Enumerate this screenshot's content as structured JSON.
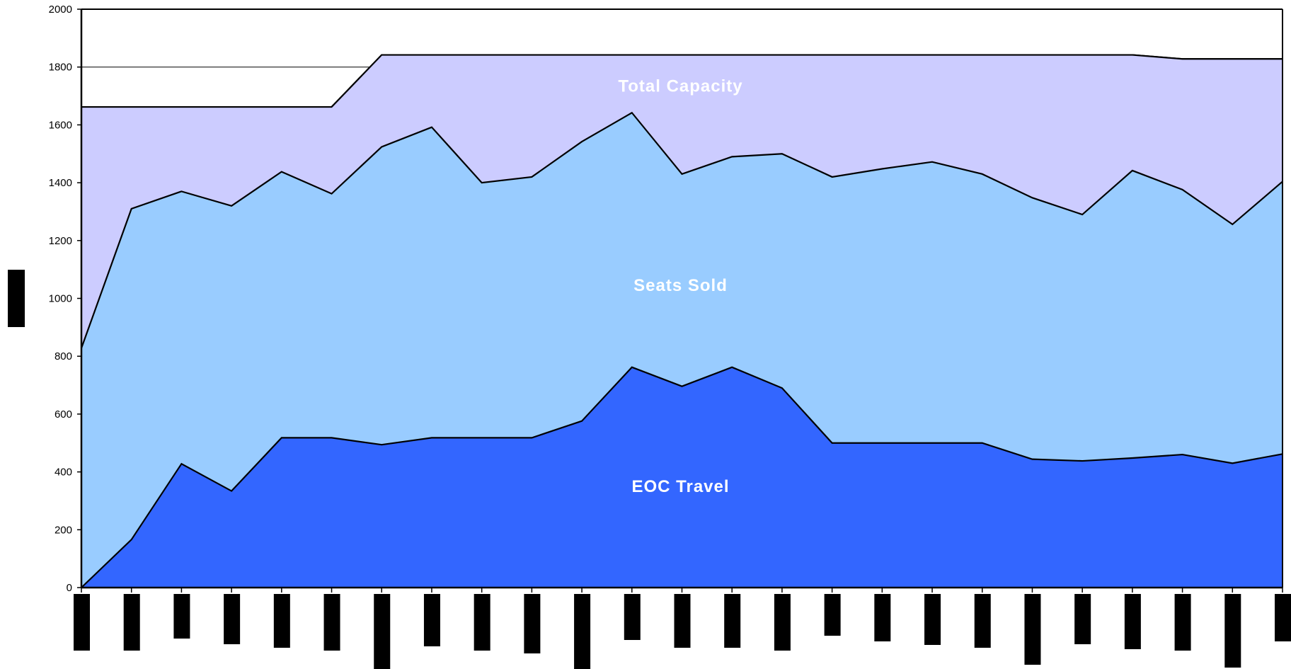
{
  "chart_data": {
    "type": "area",
    "title": "",
    "xlabel": "",
    "ylabel": "",
    "ylim": [
      0,
      2000
    ],
    "yticks": [
      0,
      200,
      400,
      600,
      800,
      1000,
      1200,
      1400,
      1600,
      1800,
      2000
    ],
    "grid": "single line at 1800",
    "n_points": 25,
    "series": [
      {
        "name": "Total Capacity",
        "color": "#ccccff",
        "values": [
          1662,
          1662,
          1662,
          1662,
          1662,
          1662,
          1842,
          1842,
          1842,
          1842,
          1842,
          1842,
          1842,
          1842,
          1842,
          1842,
          1842,
          1842,
          1842,
          1842,
          1842,
          1842,
          1828,
          1828,
          1828
        ]
      },
      {
        "name": "Seats Sold",
        "color": "#99ccff",
        "values": [
          828,
          1310,
          1370,
          1320,
          1438,
          1362,
          1524,
          1592,
          1400,
          1420,
          1542,
          1642,
          1430,
          1490,
          1500,
          1420,
          1448,
          1472,
          1430,
          1348,
          1290,
          1442,
          1376,
          1256,
          1404
        ]
      },
      {
        "name": "EOC Travel",
        "color": "#3366ff",
        "values": [
          0,
          166,
          428,
          334,
          518,
          518,
          494,
          518,
          518,
          518,
          576,
          762,
          696,
          762,
          690,
          500,
          500,
          500,
          500,
          444,
          438,
          448,
          460,
          430,
          462
        ]
      }
    ],
    "legend": "labels inside areas"
  }
}
